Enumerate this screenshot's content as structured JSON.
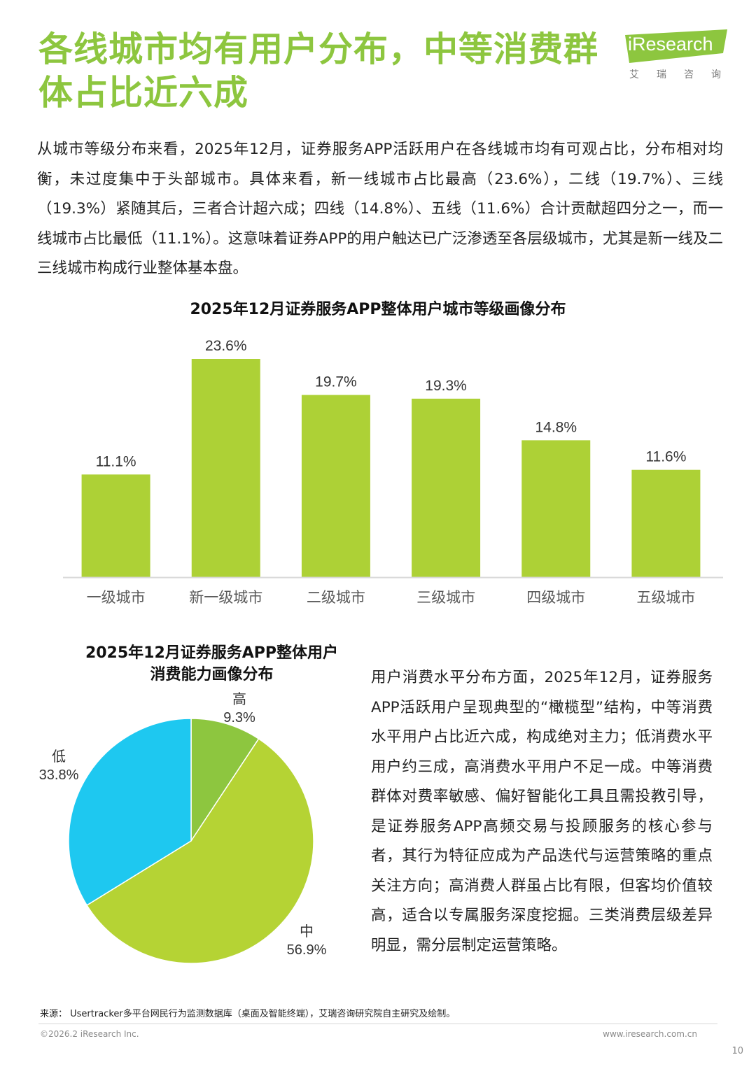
{
  "header": {
    "title": "各线城市均有用户分布，中等消费群体占比近六成",
    "logo_word": "iResearch",
    "logo_cn": "艾瑞咨询"
  },
  "intro": "从城市等级分布来看，2025年12月，证券服务APP活跃用户在各线城市均有可观占比，分布相对均衡，未过度集中于头部城市。具体来看，新一线城市占比最高（23.6%），二线（19.7%）、三线（19.3%）紧随其后，三者合计超六成；四线（14.8%）、五线（11.6%）合计贡献超四分之一，而一线城市占比最低（11.1%）。这意味着证券APP的用户触达已广泛渗透至各层级城市，尤其是新一线及二三线城市构成行业整体基本盘。",
  "side_text": "用户消费水平分布方面，2025年12月，证券服务APP活跃用户呈现典型的“橄榄型”结构，中等消费水平用户占比近六成，构成绝对主力；低消费水平用户约三成，高消费水平用户不足一成。中等消费群体对费率敏感、偏好智能化工具且需投教引导，是证券服务APP高频交易与投顾服务的核心参与者，其行为特征应成为产品迭代与运营策略的重点关注方向；高消费人群虽占比有限，但客均价值较高，适合以专属服务深度挖掘。三类消费层级差异明显，需分层制定运营策略。",
  "colors": {
    "title_green": "#8dc63f",
    "bar_green": "#add136",
    "pie_high": "#8dc63f",
    "pie_mid": "#b5d334",
    "pie_low": "#1ec8f0"
  },
  "chart_data": [
    {
      "type": "bar",
      "title": "2025年12月证券服务APP整体用户城市等级画像分布",
      "categories": [
        "一级城市",
        "新一级城市",
        "二级城市",
        "三级城市",
        "四级城市",
        "五级城市"
      ],
      "values": [
        11.1,
        23.6,
        19.7,
        19.3,
        14.8,
        11.6
      ],
      "value_labels": [
        "11.1%",
        "23.6%",
        "19.7%",
        "19.3%",
        "14.8%",
        "11.6%"
      ],
      "unit": "%",
      "ylim": [
        0,
        25
      ],
      "grid": false,
      "legend": "none"
    },
    {
      "type": "pie",
      "title": "2025年12月证券服务APP整体用户消费能力画像分布",
      "title_lines": [
        "2025年12月证券服务APP整体用户",
        "消费能力画像分布"
      ],
      "slices": [
        {
          "label": "高",
          "value": 9.3,
          "value_label": "9.3%"
        },
        {
          "label": "中",
          "value": 56.9,
          "value_label": "56.9%"
        },
        {
          "label": "低",
          "value": 33.8,
          "value_label": "33.8%"
        }
      ],
      "unit": "%",
      "legend": "none"
    }
  ],
  "footer": {
    "source": "来源： Usertracker多平台网民行为监测数据库（桌面及智能终端），艾瑞咨询研究院自主研究及绘制。",
    "copyright": "©2026.2 iResearch Inc.",
    "website": "www.iresearch.com.cn",
    "page_number": "10"
  }
}
